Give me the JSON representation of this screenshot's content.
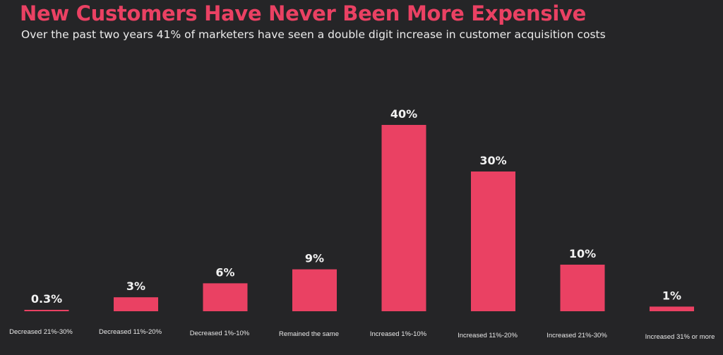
{
  "colors": {
    "background": "#252527",
    "accent": "#ea4163",
    "bar": "#ea4163",
    "value_label": "#f2f2f2",
    "category_label": "#e8e8e8"
  },
  "header": {
    "title": "New Customers Have Never Been More Expensive",
    "subtitle": "Over the past two years 41% of marketers have seen a double digit increase in customer acquisition costs"
  },
  "chart_data": {
    "type": "bar",
    "title": "New Customers Have Never Been More Expensive",
    "subtitle": "Over the past two years 41% of marketers have seen a double digit increase in customer acquisition costs",
    "xlabel": "",
    "ylabel": "",
    "categories": [
      "Decreased 21%-30%",
      "Decreased 11%-20%",
      "Decreased 1%-10%",
      "Remained the same",
      "Increased 1%-10%",
      "Increased 11%-20%",
      "Increased 21%-30%",
      "Increased 31% or more"
    ],
    "values": [
      0.3,
      3,
      6,
      9,
      40,
      30,
      10,
      1
    ],
    "value_labels": [
      "0.3%",
      "3%",
      "6%",
      "9%",
      "40%",
      "30%",
      "10%",
      "1%"
    ],
    "ylim": [
      0,
      40
    ],
    "grid": false,
    "legend": "none"
  }
}
